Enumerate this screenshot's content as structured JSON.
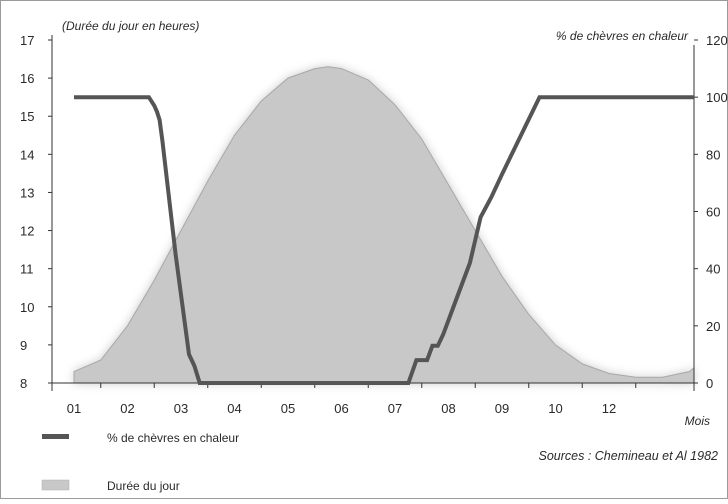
{
  "chart_data": {
    "type": "line",
    "ylabel_left": "(Durée du jour en heures)",
    "ylabel_right": "% de chèvres en chaleur",
    "xlabel": "Mois",
    "source": "Sources : Chemineau et Al 1982",
    "x_ticks": [
      "01",
      "02",
      "03",
      "04",
      "05",
      "06",
      "07",
      "08",
      "09",
      "10",
      "12"
    ],
    "y_left_ticks": [
      "8",
      "9",
      "10",
      "11",
      "12",
      "13",
      "14",
      "15",
      "16",
      "17"
    ],
    "y_left_lim": [
      8,
      17
    ],
    "y_right_ticks": [
      "0",
      "20",
      "40",
      "60",
      "80",
      "100",
      "120"
    ],
    "y_right_lim": [
      0,
      120
    ],
    "legend": [
      {
        "label": "% de chèvres en chaleur",
        "kind": "line",
        "color": "#555555"
      },
      {
        "label": "Durée du jour",
        "kind": "area",
        "color": "#c8c8c8"
      }
    ],
    "series": [
      {
        "name": "% de chèvres en chaleur",
        "axis": "right",
        "color": "#555555",
        "points": [
          [
            0.0,
            100
          ],
          [
            1.4,
            100
          ],
          [
            1.5,
            97
          ],
          [
            1.55,
            95
          ],
          [
            1.6,
            92
          ],
          [
            1.65,
            85
          ],
          [
            1.9,
            45
          ],
          [
            2.15,
            10
          ],
          [
            2.25,
            6
          ],
          [
            2.35,
            0
          ],
          [
            6.25,
            0
          ],
          [
            6.4,
            8
          ],
          [
            6.6,
            8
          ],
          [
            6.7,
            13
          ],
          [
            6.8,
            13
          ],
          [
            6.9,
            17
          ],
          [
            7.2,
            32
          ],
          [
            7.4,
            42
          ],
          [
            7.6,
            58
          ],
          [
            7.8,
            65
          ],
          [
            8.0,
            73
          ],
          [
            8.7,
            100
          ],
          [
            11.9,
            100
          ]
        ]
      },
      {
        "name": "Durée du jour",
        "axis": "left",
        "type": "area",
        "color": "#c8c8c8",
        "points": [
          [
            0.0,
            8.3
          ],
          [
            0.5,
            8.6
          ],
          [
            1.0,
            9.5
          ],
          [
            1.5,
            10.7
          ],
          [
            2.0,
            12.0
          ],
          [
            2.5,
            13.3
          ],
          [
            3.0,
            14.5
          ],
          [
            3.5,
            15.4
          ],
          [
            4.0,
            16.0
          ],
          [
            4.5,
            16.25
          ],
          [
            4.75,
            16.3
          ],
          [
            5.0,
            16.25
          ],
          [
            5.5,
            15.95
          ],
          [
            6.0,
            15.3
          ],
          [
            6.5,
            14.4
          ],
          [
            7.0,
            13.2
          ],
          [
            7.5,
            12.0
          ],
          [
            8.0,
            10.8
          ],
          [
            8.5,
            9.8
          ],
          [
            9.0,
            9.0
          ],
          [
            9.5,
            8.5
          ],
          [
            10.0,
            8.25
          ],
          [
            10.5,
            8.15
          ],
          [
            11.0,
            8.15
          ],
          [
            11.5,
            8.3
          ],
          [
            11.9,
            8.4
          ]
        ]
      }
    ]
  }
}
